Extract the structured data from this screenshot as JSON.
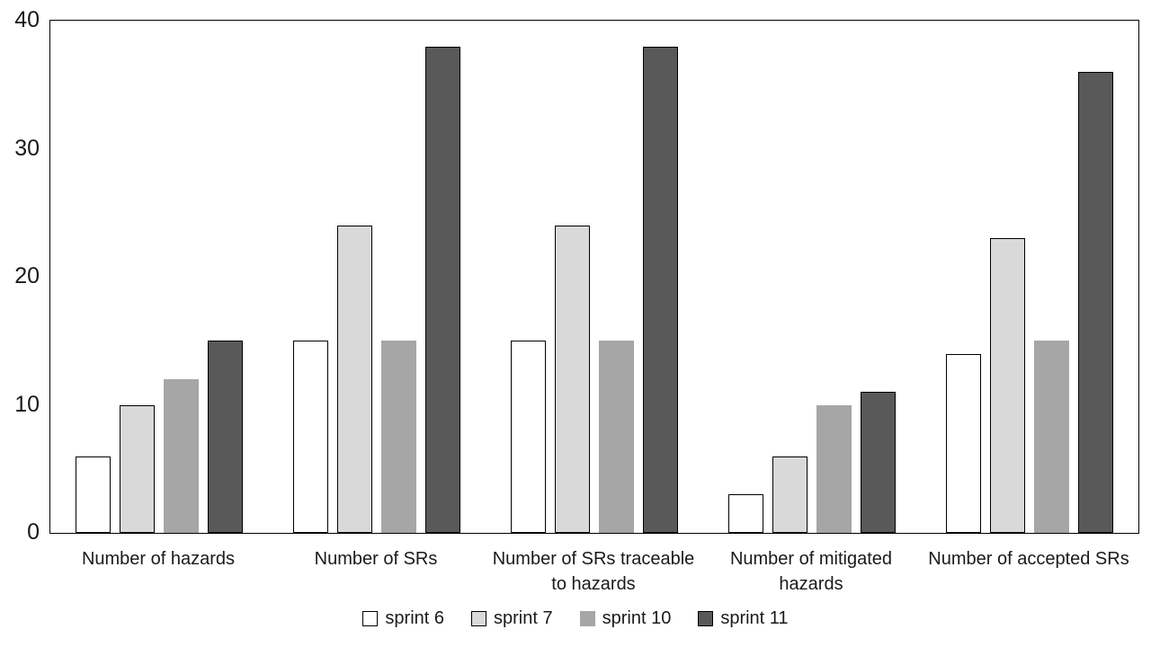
{
  "chart_data": {
    "type": "bar",
    "categories": [
      "Number of hazards",
      "Number of SRs",
      "Number of SRs traceable to hazards",
      "Number of mitigated hazards",
      "Number of accepted SRs"
    ],
    "series": [
      {
        "name": "sprint 6",
        "fill": "#ffffff",
        "border": "#000000",
        "values": [
          6,
          15,
          15,
          3,
          14
        ]
      },
      {
        "name": "sprint 7",
        "fill": "#d9d9d9",
        "border": "#000000",
        "values": [
          10,
          24,
          24,
          6,
          23
        ]
      },
      {
        "name": "sprint 10",
        "fill": "#a6a6a6",
        "border": null,
        "values": [
          12,
          15,
          15,
          10,
          15
        ]
      },
      {
        "name": "sprint 11",
        "fill": "#595959",
        "border": "#000000",
        "values": [
          15,
          38,
          38,
          11,
          36
        ]
      }
    ],
    "y_axis": {
      "min": 0,
      "max": 40,
      "ticks": [
        0,
        10,
        20,
        30,
        40
      ]
    },
    "xlabel": "",
    "ylabel": "",
    "legend_position": "bottom",
    "grid": false,
    "plot_border_color": "#000000",
    "background_color": "#ffffff"
  }
}
